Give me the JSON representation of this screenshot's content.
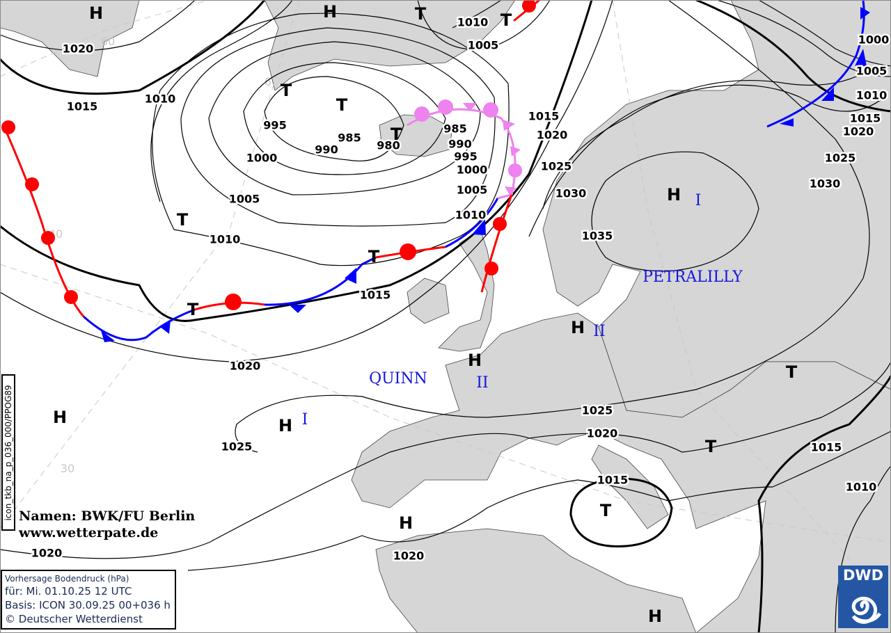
{
  "map": {
    "grid_labels": [
      "60",
      "6",
      "40",
      "30"
    ],
    "isobar_labels": [
      "1020",
      "1015",
      "1010",
      "995",
      "990",
      "985",
      "980",
      "985",
      "990",
      "995",
      "1000",
      "1005",
      "1010",
      "1000",
      "1005",
      "1010",
      "1010",
      "1005",
      "1015",
      "1020",
      "1025",
      "1030",
      "1035",
      "1015",
      "1020",
      "1025",
      "1025",
      "1020",
      "1015",
      "1020",
      "1020",
      "1000",
      "1005",
      "1010",
      "1015",
      "1020",
      "1025",
      "1030",
      "1015",
      "1010"
    ],
    "centers": [
      "H",
      "H",
      "T",
      "T",
      "T",
      "T",
      "T",
      "T",
      "T",
      "T",
      "H",
      "H",
      "H",
      "H",
      "H",
      "H",
      "T",
      "T",
      "T",
      "H"
    ],
    "system_names": [
      "PETRALILLY",
      "I",
      "II",
      "QUINN",
      "II",
      "I"
    ],
    "colors": {
      "cold_front": "#0000ff",
      "warm_front": "#ff0000",
      "occlusion": "#ee82ee",
      "land": "#d6d6d6",
      "names": "#1515e0"
    }
  },
  "credit": {
    "line1": "Namen: BWK/FU Berlin",
    "line2": "www.wetterpate.de"
  },
  "info": {
    "title": "Vorhersage Bodendruck (hPa)",
    "valid": "für:  Mi. 01.10.25  12 UTC",
    "base": "Basis: ICON  30.09.25 00+036 h",
    "copyright": "© Deutscher Wetterdienst"
  },
  "product_code": "icon_tkb_na_p_036_000/PPOG89",
  "logo": {
    "text": "DWD"
  }
}
